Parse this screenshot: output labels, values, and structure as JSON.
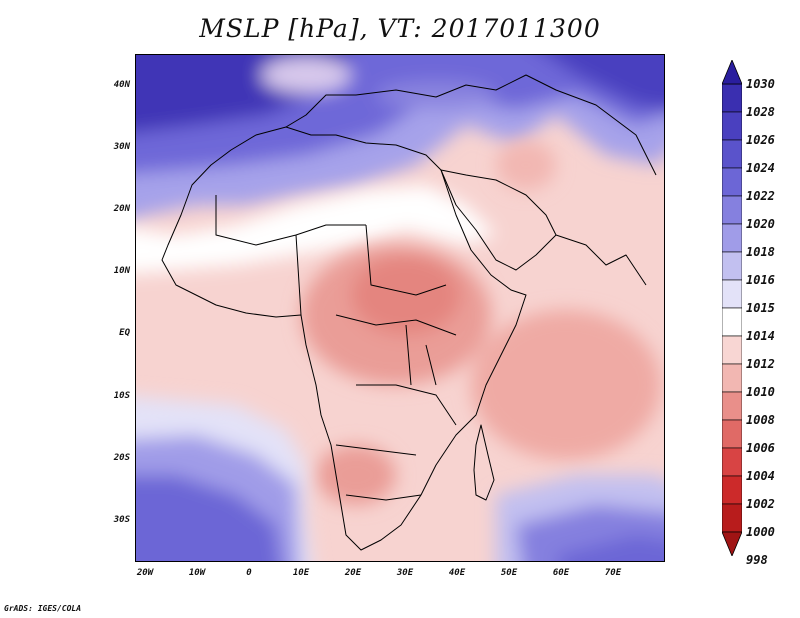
{
  "title": "MSLP [hPa], VT: 2017011300",
  "credit": "GrADS: IGES/COLA",
  "map": {
    "variable": "MSLP",
    "units": "hPa",
    "valid_time": "2017011300",
    "lat_range": [
      -37,
      45
    ],
    "lon_range": [
      -22,
      80
    ],
    "lat_ticks": [
      "40N",
      "30N",
      "20N",
      "10N",
      "EQ",
      "10S",
      "20S",
      "30S"
    ],
    "lon_ticks": [
      "20W",
      "10W",
      "0",
      "10E",
      "20E",
      "30E",
      "40E",
      "50E",
      "60E",
      "70E"
    ]
  },
  "colorbar": {
    "levels": [
      "1030",
      "1028",
      "1026",
      "1024",
      "1022",
      "1020",
      "1018",
      "1016",
      "1015",
      "1014",
      "1012",
      "1010",
      "1008",
      "1006",
      "1004",
      "1002",
      "1000",
      "998"
    ],
    "colors": [
      "#2a1e9e",
      "#3a2fb0",
      "#4a40bf",
      "#5a53cb",
      "#6c66d6",
      "#8580df",
      "#a09ce8",
      "#c2c0f0",
      "#e3e2f8",
      "#ffffff",
      "#f8d6d3",
      "#f2b7b2",
      "#e98f8a",
      "#e06a66",
      "#d84444",
      "#cc2a2a",
      "#b81c1c",
      "#a01414"
    ]
  },
  "colors": {
    "high": "#4a40bf",
    "neutral": "#ffffff",
    "low": "#e98f8a",
    "coast": "#000000"
  }
}
